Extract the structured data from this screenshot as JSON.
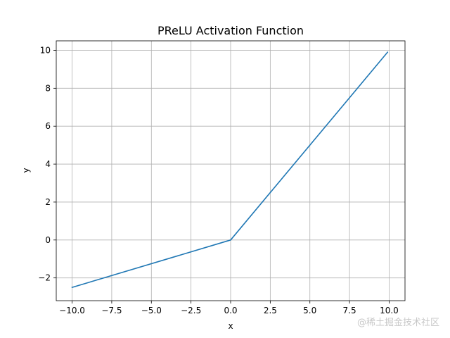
{
  "chart_data": {
    "type": "line",
    "title": "PReLU Activation Function",
    "xlabel": "x",
    "ylabel": "y",
    "xlim": [
      -11,
      11
    ],
    "ylim": [
      -3.2,
      10.5
    ],
    "grid": true,
    "xticks": [
      -10.0,
      -7.5,
      -5.0,
      -2.5,
      0.0,
      2.5,
      5.0,
      7.5,
      10.0
    ],
    "xtick_labels": [
      "−10.0",
      "−7.5",
      "−5.0",
      "−2.5",
      "0.0",
      "2.5",
      "5.0",
      "7.5",
      "10.0"
    ],
    "yticks": [
      -2,
      0,
      2,
      4,
      6,
      8,
      10
    ],
    "ytick_labels": [
      "−2",
      "0",
      "2",
      "4",
      "6",
      "8",
      "10"
    ],
    "series": [
      {
        "color": "#1f77b4",
        "x": [
          -10.0,
          0.0,
          9.9
        ],
        "y": [
          -2.5,
          0.0,
          9.9
        ]
      }
    ]
  },
  "watermark": "@稀土掘金技术社区"
}
